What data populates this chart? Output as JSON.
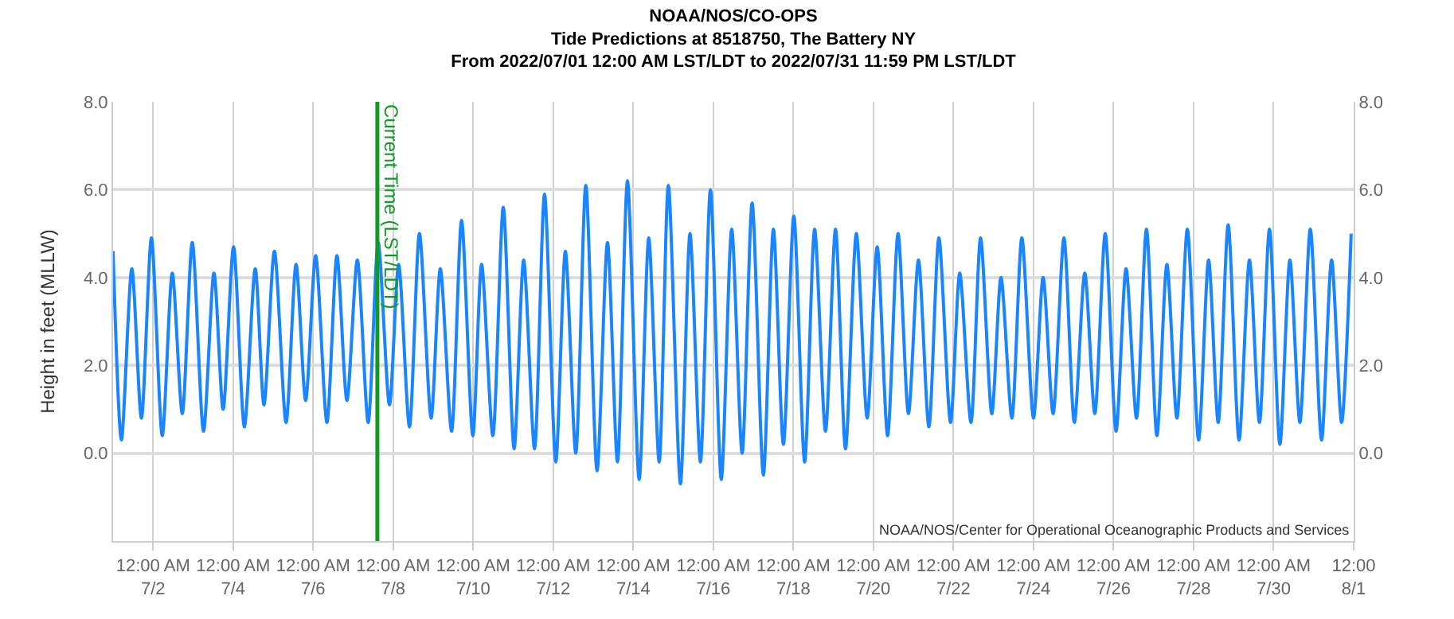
{
  "chart_data": {
    "type": "line",
    "title": "NOAA/NOS/CO-OPS\nTide Predictions at 8518750, The Battery NY\nFrom 2022/07/01 12:00 AM LST/LDT to 2022/07/31 11:59 PM LST/LDT",
    "ylabel": "Height in feet (MLLW)",
    "x": [
      "2022-07-01T00:00",
      "2022-07-01T05:00",
      "2022-07-01T11:15",
      "2022-07-01T17:00",
      "2022-07-01T23:00",
      "2022-07-02T05:30",
      "2022-07-02T11:30",
      "2022-07-02T17:30",
      "2022-07-02T23:30",
      "2022-07-03T06:15",
      "2022-07-03T12:30",
      "2022-07-03T18:00",
      "2022-07-04T00:15",
      "2022-07-04T06:45",
      "2022-07-04T13:15",
      "2022-07-04T18:30",
      "2022-07-05T00:45",
      "2022-07-05T07:45",
      "2022-07-05T13:45",
      "2022-07-05T19:30",
      "2022-07-06T01:30",
      "2022-07-06T08:15",
      "2022-07-06T14:15",
      "2022-07-06T20:15",
      "2022-07-07T02:30",
      "2022-07-07T09:00",
      "2022-07-07T15:00",
      "2022-07-07T21:45",
      "2022-07-08T03:15",
      "2022-07-08T09:45",
      "2022-07-08T15:45",
      "2022-07-08T22:45",
      "2022-07-09T04:15",
      "2022-07-09T11:00",
      "2022-07-09T17:00",
      "2022-07-09T23:45",
      "2022-07-10T05:00",
      "2022-07-10T11:45",
      "2022-07-10T18:00",
      "2022-07-11T00:30",
      "2022-07-11T06:15",
      "2022-07-11T12:45",
      "2022-07-11T18:45",
      "2022-07-12T01:30",
      "2022-07-12T07:15",
      "2022-07-12T13:30",
      "2022-07-12T19:30",
      "2022-07-13T02:15",
      "2022-07-13T08:30",
      "2022-07-13T14:30",
      "2022-07-13T20:30",
      "2022-07-14T03:30",
      "2022-07-14T09:15",
      "2022-07-14T15:30",
      "2022-07-14T21:00",
      "2022-07-15T04:15",
      "2022-07-15T10:00",
      "2022-07-15T16:15",
      "2022-07-15T22:15",
      "2022-07-16T04:45",
      "2022-07-16T11:00",
      "2022-07-16T17:15",
      "2022-07-16T23:15",
      "2022-07-17T06:00",
      "2022-07-17T12:00",
      "2022-07-17T18:00",
      "2022-07-18T00:15",
      "2022-07-18T06:45",
      "2022-07-18T12:45",
      "2022-07-18T19:15",
      "2022-07-19T01:15",
      "2022-07-19T07:15",
      "2022-07-19T13:45",
      "2022-07-19T20:15",
      "2022-07-20T02:15",
      "2022-07-20T08:30",
      "2022-07-20T14:45",
      "2022-07-20T21:00",
      "2022-07-21T03:00",
      "2022-07-21T09:15",
      "2022-07-21T15:15",
      "2022-07-21T22:15",
      "2022-07-22T03:45",
      "2022-07-22T10:30",
      "2022-07-22T16:15",
      "2022-07-22T23:00",
      "2022-07-23T04:30",
      "2022-07-23T11:00",
      "2022-07-23T17:00",
      "2022-07-24T00:00",
      "2022-07-24T05:45",
      "2022-07-24T11:45",
      "2022-07-24T18:15",
      "2022-07-25T00:30",
      "2022-07-25T06:45",
      "2022-07-25T12:45",
      "2022-07-25T19:00",
      "2022-07-26T01:30",
      "2022-07-26T07:30",
      "2022-07-26T13:45",
      "2022-07-26T19:45",
      "2022-07-27T02:00",
      "2022-07-27T08:00",
      "2022-07-27T14:00",
      "2022-07-27T20:15",
      "2022-07-28T03:00",
      "2022-07-28T09:00",
      "2022-07-28T14:45",
      "2022-07-28T20:45",
      "2022-07-29T03:15",
      "2022-07-29T09:30",
      "2022-07-29T15:30",
      "2022-07-29T21:30",
      "2022-07-30T03:45",
      "2022-07-30T09:45",
      "2022-07-30T15:45",
      "2022-07-30T22:00",
      "2022-07-31T04:45",
      "2022-07-31T10:45",
      "2022-07-31T16:45",
      "2022-07-31T22:30"
    ],
    "series": [
      {
        "color": "#1a85ff",
        "values": [
          4.6,
          0.3,
          4.2,
          0.8,
          4.9,
          0.4,
          4.1,
          0.9,
          4.8,
          0.5,
          4.1,
          1.0,
          4.7,
          0.6,
          4.2,
          1.1,
          4.6,
          0.7,
          4.3,
          1.2,
          4.5,
          0.7,
          4.5,
          1.2,
          4.4,
          0.7,
          4.8,
          1.1,
          4.3,
          0.6,
          5.0,
          0.8,
          4.2,
          0.5,
          5.3,
          0.4,
          4.3,
          0.4,
          5.6,
          0.1,
          4.4,
          0.1,
          5.9,
          -0.2,
          4.6,
          0.0,
          6.1,
          -0.4,
          4.8,
          -0.2,
          6.2,
          -0.6,
          4.9,
          -0.2,
          6.1,
          -0.7,
          5.0,
          -0.2,
          6.0,
          -0.6,
          5.1,
          0.0,
          5.7,
          -0.5,
          5.1,
          0.2,
          5.4,
          -0.2,
          5.1,
          0.5,
          5.1,
          0.1,
          5.0,
          0.8,
          4.7,
          0.4,
          5.0,
          0.9,
          4.4,
          0.6,
          4.9,
          0.7,
          4.1,
          0.7,
          4.9,
          0.9,
          4.0,
          0.8,
          4.9,
          0.8,
          4.0,
          0.9,
          4.9,
          0.7,
          4.1,
          0.9,
          5.0,
          0.5,
          4.2,
          0.8,
          5.1,
          0.4,
          4.3,
          0.8,
          5.1,
          0.3,
          4.4,
          0.7,
          5.2,
          0.3,
          4.4,
          0.7,
          5.1,
          0.2,
          4.4,
          0.7,
          5.1,
          0.3,
          4.4,
          0.7,
          5.0
        ]
      }
    ],
    "xlim": [
      "2022-07-01T00:00",
      "2022-08-01T00:00"
    ],
    "xticks": [
      {
        "value": "2022-07-02T00:00",
        "label": "12:00 AM\n7/2"
      },
      {
        "value": "2022-07-04T00:00",
        "label": "12:00 AM\n7/4"
      },
      {
        "value": "2022-07-06T00:00",
        "label": "12:00 AM\n7/6"
      },
      {
        "value": "2022-07-08T00:00",
        "label": "12:00 AM\n7/8"
      },
      {
        "value": "2022-07-10T00:00",
        "label": "12:00 AM\n7/10"
      },
      {
        "value": "2022-07-12T00:00",
        "label": "12:00 AM\n7/12"
      },
      {
        "value": "2022-07-14T00:00",
        "label": "12:00 AM\n7/14"
      },
      {
        "value": "2022-07-16T00:00",
        "label": "12:00 AM\n7/16"
      },
      {
        "value": "2022-07-18T00:00",
        "label": "12:00 AM\n7/18"
      },
      {
        "value": "2022-07-20T00:00",
        "label": "12:00 AM\n7/20"
      },
      {
        "value": "2022-07-22T00:00",
        "label": "12:00 AM\n7/22"
      },
      {
        "value": "2022-07-24T00:00",
        "label": "12:00 AM\n7/24"
      },
      {
        "value": "2022-07-26T00:00",
        "label": "12:00 AM\n7/26"
      },
      {
        "value": "2022-07-28T00:00",
        "label": "12:00 AM\n7/28"
      },
      {
        "value": "2022-07-30T00:00",
        "label": "12:00 AM\n7/30"
      },
      {
        "value": "2022-08-01T00:00",
        "label": "12:00\n8/1"
      }
    ],
    "ylim": [
      -2,
      8
    ],
    "yticks": [
      {
        "value": 0,
        "label": "0.0"
      },
      {
        "value": 2,
        "label": "2.0"
      },
      {
        "value": 4,
        "label": "4.0"
      },
      {
        "value": 6,
        "label": "6.0"
      },
      {
        "value": 8,
        "label": "8.0"
      }
    ],
    "y2lim": [
      -2,
      8
    ],
    "y2ticks": [
      {
        "value": 0,
        "label": "0.0"
      },
      {
        "value": 2,
        "label": "2.0"
      },
      {
        "value": 4,
        "label": "4.0"
      },
      {
        "value": 6,
        "label": "6.0"
      },
      {
        "value": 8,
        "label": "8.0"
      }
    ],
    "ref_lines": [
      {
        "axis": "x",
        "value": "2022-07-07T14:30",
        "label": "Current Time (LST/LDT)",
        "color": "#109a24"
      }
    ],
    "annotations": [
      "NOAA/NOS/Center for Operational Oceanographic Products and Services"
    ],
    "grid": true,
    "marker": "none",
    "line_style": "solid"
  }
}
